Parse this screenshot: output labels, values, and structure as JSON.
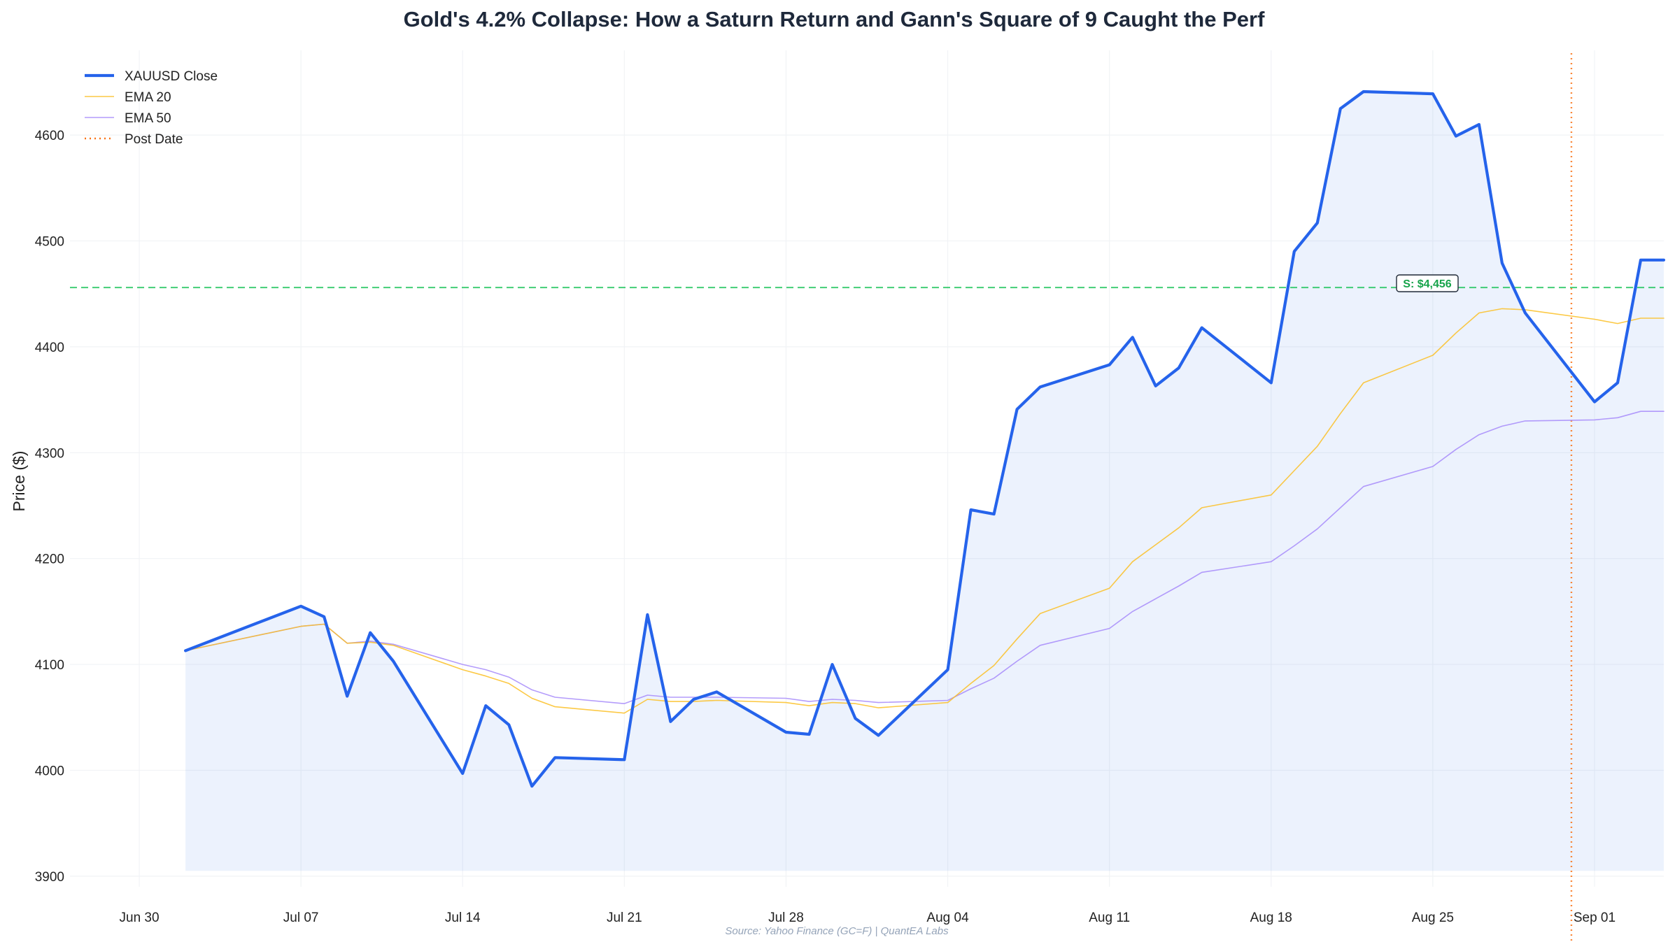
{
  "chart_data": {
    "type": "line",
    "title": "Gold's 4.2% Collapse: How a Saturn Return and Gann's Square of 9 Caught the Perf",
    "xlabel": "",
    "ylabel": "Price ($)",
    "source": "Source: Yahoo Finance (GC=F) | QuantEA Labs",
    "xlim": [
      "2025-06-27",
      "2025-09-04"
    ],
    "ylim": [
      3890,
      4680
    ],
    "grid": true,
    "legend_position": "top-left",
    "x_ticks": [
      {
        "date": "2025-06-30",
        "label": "Jun 30"
      },
      {
        "date": "2025-07-07",
        "label": "Jul 07"
      },
      {
        "date": "2025-07-14",
        "label": "Jul 14"
      },
      {
        "date": "2025-07-21",
        "label": "Jul 21"
      },
      {
        "date": "2025-07-28",
        "label": "Jul 28"
      },
      {
        "date": "2025-08-04",
        "label": "Aug 04"
      },
      {
        "date": "2025-08-11",
        "label": "Aug 11"
      },
      {
        "date": "2025-08-18",
        "label": "Aug 18"
      },
      {
        "date": "2025-08-25",
        "label": "Aug 25"
      },
      {
        "date": "2025-09-01",
        "label": "Sep 01"
      }
    ],
    "y_ticks": [
      3900,
      4000,
      4100,
      4200,
      4300,
      4400,
      4500,
      4600
    ],
    "fill_base": 3905,
    "x": [
      "2025-07-02",
      "2025-07-07",
      "2025-07-08",
      "2025-07-09",
      "2025-07-10",
      "2025-07-11",
      "2025-07-14",
      "2025-07-15",
      "2025-07-16",
      "2025-07-17",
      "2025-07-18",
      "2025-07-21",
      "2025-07-22",
      "2025-07-23",
      "2025-07-24",
      "2025-07-25",
      "2025-07-28",
      "2025-07-29",
      "2025-07-30",
      "2025-07-31",
      "2025-08-01",
      "2025-08-04",
      "2025-08-05",
      "2025-08-06",
      "2025-08-07",
      "2025-08-08",
      "2025-08-11",
      "2025-08-12",
      "2025-08-13",
      "2025-08-14",
      "2025-08-15",
      "2025-08-18",
      "2025-08-19",
      "2025-08-20",
      "2025-08-21",
      "2025-08-22",
      "2025-08-25",
      "2025-08-26",
      "2025-08-27",
      "2025-08-28",
      "2025-08-29",
      "2025-09-01",
      "2025-09-02",
      "2025-09-03",
      "2025-09-04"
    ],
    "series": [
      {
        "name": "XAUUSD Close",
        "color": "#2563eb",
        "style": "solid-thick",
        "values": [
          4113,
          4155,
          4145,
          4070,
          4130,
          4103,
          3997,
          4061,
          4043,
          3985,
          4012,
          4010,
          4147,
          4046,
          4067,
          4074,
          4036,
          4034,
          4100,
          4049,
          4033,
          4095,
          4246,
          4242,
          4341,
          4362,
          4383,
          4409,
          4363,
          4380,
          4418,
          4366,
          4490,
          4517,
          4625,
          4641,
          4639,
          4599,
          4610,
          4479,
          4432,
          4348,
          4366,
          4482,
          4482
        ]
      },
      {
        "name": "EMA 20",
        "color": "#fbbf24",
        "style": "solid-thin",
        "values": [
          4113,
          4136,
          4138,
          4120,
          4121,
          4118,
          4095,
          4089,
          4082,
          4068,
          4060,
          4054,
          4067,
          4065,
          4065,
          4066,
          4064,
          4061,
          4064,
          4063,
          4059,
          4064,
          4082,
          4099,
          4124,
          4148,
          4172,
          4197,
          4213,
          4229,
          4248,
          4260,
          4283,
          4306,
          4337,
          4366,
          4392,
          4413,
          4432,
          4436,
          4435,
          4426,
          4422,
          4427,
          4427
        ]
      },
      {
        "name": "EMA 50",
        "color": "#a78bfa",
        "style": "solid-thin",
        "values": [
          4113,
          4136,
          4138,
          4120,
          4122,
          4119,
          4100,
          4095,
          4088,
          4076,
          4069,
          4063,
          4071,
          4069,
          4069,
          4069,
          4068,
          4065,
          4067,
          4066,
          4064,
          4066,
          4077,
          4087,
          4103,
          4118,
          4134,
          4150,
          4162,
          4174,
          4187,
          4197,
          4212,
          4228,
          4248,
          4268,
          4287,
          4303,
          4317,
          4325,
          4330,
          4331,
          4333,
          4339,
          4339
        ]
      },
      {
        "name": "Post Date",
        "color": "#f97316",
        "style": "dotted-vertical",
        "x": "2025-08-31"
      }
    ],
    "annotations": [
      {
        "type": "hline",
        "y": 4456,
        "color": "#22c55e",
        "label": "S: $4,456"
      }
    ]
  }
}
